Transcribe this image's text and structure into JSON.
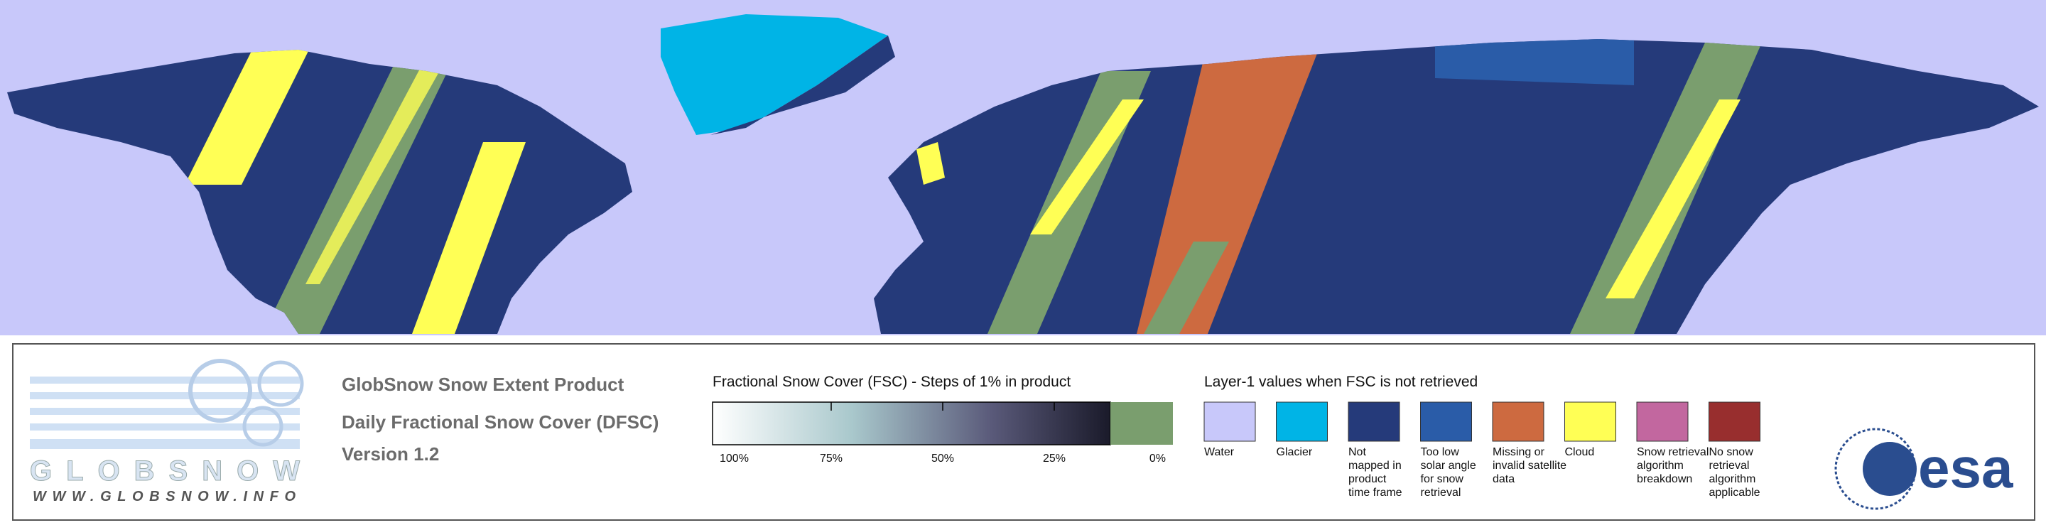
{
  "header": {
    "lines": [
      "GlobSnow Snow Extent Product",
      "Daily Fractional Snow Cover (DFSC)",
      "Version 1.2"
    ]
  },
  "logo": {
    "name": "GLOBSNOW",
    "url": "WWW.GLOBSNOW.INFO"
  },
  "fsc_legend": {
    "title": "Fractional Snow Cover (FSC) - Steps of 1% in product",
    "ticks": [
      "100%",
      "75%",
      "50%",
      "25%",
      "0%"
    ]
  },
  "layer1_legend": {
    "title": "Layer-1 values when FSC is not retrieved",
    "items": [
      {
        "color": "#c8c8fa",
        "lines": [
          "Water"
        ]
      },
      {
        "color": "#00b4e6",
        "lines": [
          "Glacier"
        ]
      },
      {
        "color": "#253a7a",
        "lines": [
          "Not",
          "mapped in",
          "product",
          "time frame"
        ]
      },
      {
        "color": "#2a5ca8",
        "lines": [
          "Too low",
          "solar angle",
          "for snow",
          "retrieval"
        ]
      },
      {
        "color": "#cd6a40",
        "lines": [
          "Missing or",
          "invalid satellite",
          "data"
        ]
      },
      {
        "color": "#ffff55",
        "lines": [
          "Cloud"
        ]
      },
      {
        "color": "#c2679f",
        "lines": [
          "Snow retrieval",
          "algorithm",
          "breakdown"
        ]
      },
      {
        "color": "#982e2e",
        "lines": [
          "No snow",
          "retrieval",
          "algorithm",
          "applicable"
        ]
      }
    ]
  },
  "esa": {
    "name": "esa"
  }
}
